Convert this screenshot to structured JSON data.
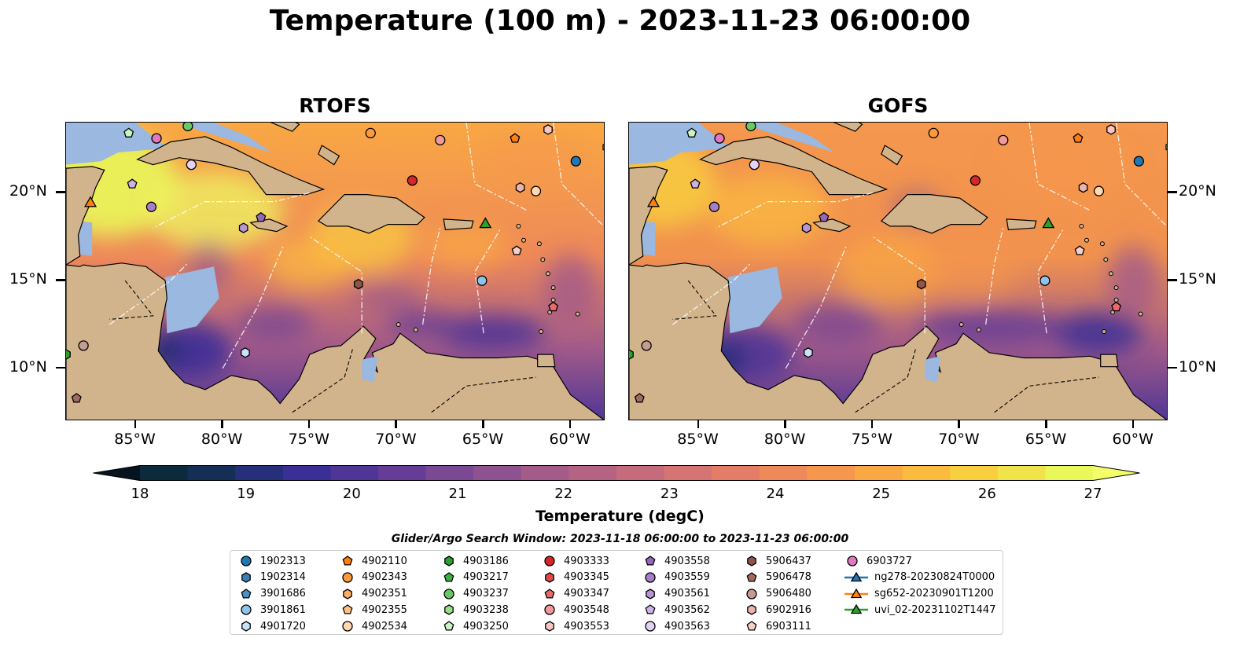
{
  "title": "Temperature (100 m) - 2023-11-23 06:00:00",
  "panels": [
    {
      "title": "RTOFS"
    },
    {
      "title": "GOFS"
    }
  ],
  "map": {
    "lon_range": [
      -89,
      -58
    ],
    "lat_range": [
      7,
      24
    ],
    "lat_ticks": [
      "20°N",
      "15°N",
      "10°N"
    ],
    "lat_values": [
      20,
      15,
      10
    ],
    "lon_ticks": [
      "85°W",
      "80°W",
      "75°W",
      "70°W",
      "65°W",
      "60°W"
    ],
    "lon_values": [
      -85,
      -80,
      -75,
      -70,
      -65,
      -60
    ],
    "land_color": "#d2b48c",
    "water_color": "#9ab8e0"
  },
  "colorbar": {
    "label": "Temperature (degC)",
    "ticks": [
      "18",
      "19",
      "20",
      "21",
      "22",
      "23",
      "24",
      "25",
      "26",
      "27"
    ],
    "range": [
      18,
      27
    ],
    "colors": [
      "#0b2a3c",
      "#152e55",
      "#252f7a",
      "#3a2f96",
      "#4f3596",
      "#653d96",
      "#7b4894",
      "#8f5290",
      "#a35b89",
      "#b56382",
      "#c66b7b",
      "#d67473",
      "#e47d67",
      "#ee895a",
      "#f5974d",
      "#f9a843",
      "#fbbb3e",
      "#f8cf3f",
      "#f1e34a",
      "#e9f75a"
    ]
  },
  "legend": {
    "title": "Glider/Argo Search Window: 2023-11-18 06:00:00 to 2023-11-23 06:00:00",
    "columns": [
      [
        {
          "label": "1902313",
          "marker": "circle",
          "color": "#1f77b4"
        },
        {
          "label": "1902314",
          "marker": "hexagon",
          "color": "#3a7fb8"
        },
        {
          "label": "3901686",
          "marker": "pentagon",
          "color": "#4a90c8"
        },
        {
          "label": "3901861",
          "marker": "circle",
          "color": "#8fc3ea"
        },
        {
          "label": "4901720",
          "marker": "hexagon",
          "color": "#c8e4f8"
        }
      ],
      [
        {
          "label": "4902110",
          "marker": "pentagon",
          "color": "#ff7f0e"
        },
        {
          "label": "4902343",
          "marker": "circle",
          "color": "#ff9a3c"
        },
        {
          "label": "4902351",
          "marker": "hexagon",
          "color": "#ffad60"
        },
        {
          "label": "4902355",
          "marker": "pentagon",
          "color": "#ffc285"
        },
        {
          "label": "4902534",
          "marker": "circle",
          "color": "#ffd8b0"
        }
      ],
      [
        {
          "label": "4903186",
          "marker": "hexagon",
          "color": "#2ca02c"
        },
        {
          "label": "4903217",
          "marker": "pentagon",
          "color": "#3fae3f"
        },
        {
          "label": "4903237",
          "marker": "circle",
          "color": "#68c868"
        },
        {
          "label": "4903238",
          "marker": "hexagon",
          "color": "#98df8a"
        },
        {
          "label": "4903250",
          "marker": "pentagon",
          "color": "#c8f5c0"
        }
      ],
      [
        {
          "label": "4903333",
          "marker": "circle",
          "color": "#d62728"
        },
        {
          "label": "4903345",
          "marker": "hexagon",
          "color": "#e0484a"
        },
        {
          "label": "4903347",
          "marker": "pentagon",
          "color": "#e86a6b"
        },
        {
          "label": "4903548",
          "marker": "circle",
          "color": "#f29a99"
        },
        {
          "label": "4903553",
          "marker": "hexagon",
          "color": "#f9c6c5"
        }
      ],
      [
        {
          "label": "4903558",
          "marker": "pentagon",
          "color": "#9467bd"
        },
        {
          "label": "4903559",
          "marker": "circle",
          "color": "#a57ec9"
        },
        {
          "label": "4903561",
          "marker": "hexagon",
          "color": "#b896d6"
        },
        {
          "label": "4903562",
          "marker": "pentagon",
          "color": "#cdb2e6"
        },
        {
          "label": "4903563",
          "marker": "circle",
          "color": "#e4d2f5"
        }
      ],
      [
        {
          "label": "5906437",
          "marker": "hexagon",
          "color": "#8c564b"
        },
        {
          "label": "5906478",
          "marker": "pentagon",
          "color": "#a06a5e"
        },
        {
          "label": "5906480",
          "marker": "circle",
          "color": "#c49c94"
        },
        {
          "label": "6902916",
          "marker": "hexagon",
          "color": "#e8b4ab"
        },
        {
          "label": "6903111",
          "marker": "pentagon",
          "color": "#f7cfc7"
        }
      ],
      [
        {
          "label": "6903727",
          "marker": "circle",
          "color": "#e377c2"
        },
        {
          "label": "ng278-20230824T0000",
          "marker": "triangle-line",
          "color": "#1f77b4"
        },
        {
          "label": "sg652-20230901T1200",
          "marker": "triangle-line",
          "color": "#ff7f0e"
        },
        {
          "label": "uvi_02-20231102T1447",
          "marker": "triangle-line",
          "color": "#2ca02c"
        }
      ]
    ]
  },
  "observations": [
    {
      "id": "1902313",
      "lon": -59.7,
      "lat": 21.8
    },
    {
      "id": "3901861",
      "lon": -65.1,
      "lat": 15.0
    },
    {
      "id": "4901720",
      "lon": -78.7,
      "lat": 10.9
    },
    {
      "id": "4902110",
      "lon": -63.2,
      "lat": 23.1
    },
    {
      "id": "4902534",
      "lon": -62.0,
      "lat": 20.1
    },
    {
      "id": "4903250",
      "lon": -85.4,
      "lat": 23.4
    },
    {
      "id": "4903237",
      "lon": -82.0,
      "lat": 23.8
    },
    {
      "id": "4903333",
      "lon": -69.1,
      "lat": 20.7
    },
    {
      "id": "4903347",
      "lon": -61.0,
      "lat": 13.5
    },
    {
      "id": "4903548",
      "lon": -67.5,
      "lat": 23.0
    },
    {
      "id": "4903553",
      "lon": -61.3,
      "lat": 23.6
    },
    {
      "id": "4903558",
      "lon": -77.8,
      "lat": 18.6
    },
    {
      "id": "4903559",
      "lon": -84.1,
      "lat": 19.2
    },
    {
      "id": "4903561",
      "lon": -78.8,
      "lat": 18.0
    },
    {
      "id": "4903562",
      "lon": -85.2,
      "lat": 20.5
    },
    {
      "id": "4903563",
      "lon": -81.8,
      "lat": 21.6
    },
    {
      "id": "5906437",
      "lon": -72.2,
      "lat": 14.8
    },
    {
      "id": "5906478",
      "lon": -88.4,
      "lat": 8.3
    },
    {
      "id": "5906480",
      "lon": -88.0,
      "lat": 11.3
    },
    {
      "id": "6902916",
      "lon": -62.9,
      "lat": 20.3
    },
    {
      "id": "6903111",
      "lon": -63.1,
      "lat": 16.7
    },
    {
      "id": "6903727",
      "lon": -83.8,
      "lat": 23.1
    },
    {
      "id": "4902343",
      "lon": -71.5,
      "lat": 23.4
    },
    {
      "id": "4903238",
      "lon": -57.9,
      "lat": 22.6
    },
    {
      "id": "4903186",
      "lon": -89.0,
      "lat": 10.8
    },
    {
      "id": "sg652-20230901T1200",
      "lon": -87.6,
      "lat": 19.4
    },
    {
      "id": "uvi_02-20231102T1447",
      "lon": -64.9,
      "lat": 18.2
    }
  ]
}
